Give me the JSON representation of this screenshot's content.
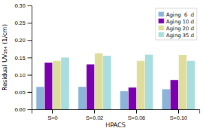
{
  "chart_data": {
    "type": "bar",
    "xlabel": "HPACS",
    "ylabel": "Residual UV₂₅₄ (1/cm)",
    "categories": [
      "S=0",
      "S=0.02",
      "S=0.06",
      "S=0.10"
    ],
    "series": [
      {
        "name": "Aging  6  d",
        "color": "#8ab4d8",
        "values": [
          0.065,
          0.065,
          0.053,
          0.058
        ]
      },
      {
        "name": "Aging 10 d",
        "color": "#7b00b0",
        "values": [
          0.135,
          0.13,
          0.063,
          0.085
        ]
      },
      {
        "name": "Aging 20 d",
        "color": "#dede9a",
        "values": [
          0.14,
          0.162,
          0.14,
          0.157
        ]
      },
      {
        "name": "Aging 35 d",
        "color": "#aadede",
        "values": [
          0.15,
          0.155,
          0.158,
          0.14
        ]
      }
    ],
    "ylim": [
      0.0,
      0.3
    ],
    "yticks": [
      {
        "value": 0.0,
        "label": "0.00"
      },
      {
        "value": 0.05,
        "label": "0.05"
      },
      {
        "value": 0.1,
        "label": "0.10"
      },
      {
        "value": 0.15,
        "label": "0.15"
      },
      {
        "value": 0.2,
        "label": "0.20"
      },
      {
        "value": 0.25,
        "label": "0.25"
      },
      {
        "value": 0.3,
        "label": "0.30"
      }
    ],
    "grid": false,
    "legend": "upper right"
  }
}
